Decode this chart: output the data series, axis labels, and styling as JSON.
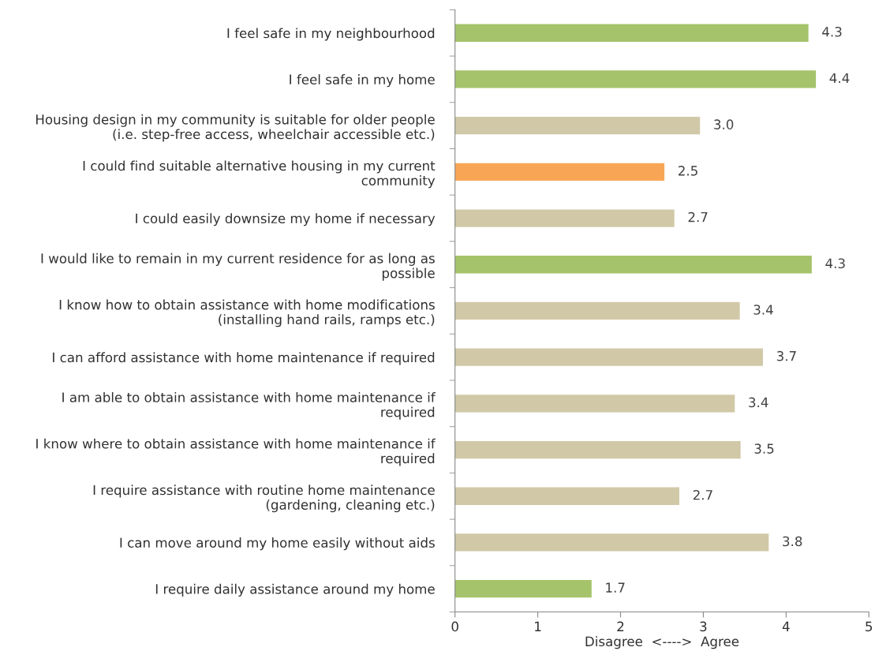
{
  "chart_data": {
    "type": "bar",
    "orientation": "horizontal",
    "categories": [
      "I feel safe in my neighbourhood",
      "I feel safe in my home",
      "Housing design in my community is suitable for older people\n(i.e. step-free access, wheelchair accessible etc.)",
      "I could find suitable alternative housing in my current\ncommunity",
      "I could easily downsize my home if necessary",
      "I would like to remain in my current residence for as long as\npossible",
      "I know how to obtain assistance with home modifications\n(installing hand rails, ramps etc.)",
      "I can afford assistance with home maintenance if required",
      "I am able to obtain assistance with home maintenance if\nrequired",
      "I know where to obtain assistance with home maintenance if\nrequired",
      "I require assistance with routine home maintenance\n(gardening, cleaning etc.)",
      "I can move around my home easily without aids",
      "I require daily assistance around my home"
    ],
    "values": [
      4.27,
      4.36,
      2.96,
      2.53,
      2.65,
      4.31,
      3.44,
      3.72,
      3.38,
      3.45,
      2.71,
      3.79,
      1.65
    ],
    "value_labels": [
      "4.3",
      "4.4",
      "3.0",
      "2.5",
      "2.7",
      "4.3",
      "3.4",
      "3.7",
      "3.4",
      "3.5",
      "2.7",
      "3.8",
      "1.7"
    ],
    "colors": [
      "#a5c36a",
      "#a5c36a",
      "#d1c8a7",
      "#f8a655",
      "#d1c8a7",
      "#a5c36a",
      "#d1c8a7",
      "#d1c8a7",
      "#d1c8a7",
      "#d1c8a7",
      "#d1c8a7",
      "#d1c8a7",
      "#a5c36a"
    ],
    "xlabel": "Disagree  <---->  Agree",
    "xlim": [
      0,
      5
    ],
    "xticks": [
      0,
      1,
      2,
      3,
      4,
      5
    ],
    "grid": false,
    "legend": false
  }
}
